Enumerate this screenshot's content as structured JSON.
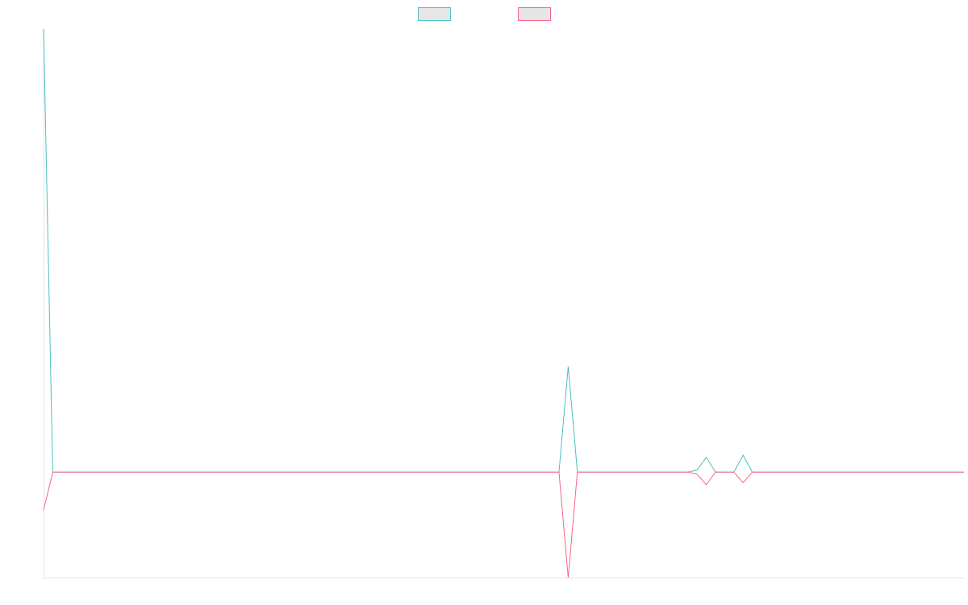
{
  "chart_data": {
    "type": "line",
    "title": "",
    "xlabel": "",
    "ylabel": "",
    "grid": false,
    "legend_position": "top-center",
    "x": [
      0,
      1,
      2,
      3,
      4,
      5,
      6,
      7,
      8,
      9,
      10,
      11,
      12,
      13,
      14,
      15,
      16,
      17,
      18,
      19,
      20,
      21,
      22,
      23,
      24,
      25,
      26,
      27,
      28,
      29,
      30,
      31,
      32,
      33,
      34,
      35,
      36,
      37,
      38,
      39,
      40,
      41,
      42,
      43,
      44,
      45,
      46,
      47,
      48,
      49,
      50,
      51,
      52,
      53,
      54,
      55,
      56,
      57,
      58,
      59,
      60,
      61,
      62,
      63,
      64,
      65,
      66,
      67,
      68,
      69,
      70,
      71,
      72,
      73,
      74,
      75,
      76,
      77,
      78,
      79,
      80,
      81,
      82,
      83,
      84,
      85,
      86,
      87,
      88,
      89,
      90,
      91,
      92,
      93,
      94,
      95,
      96,
      97,
      98,
      99,
      100
    ],
    "ylim": [
      -1,
      4.2
    ],
    "series": [
      {
        "name": "",
        "color": "#4bc0c0",
        "values": [
          4.2,
          0,
          0,
          0,
          0,
          0,
          0,
          0,
          0,
          0,
          0,
          0,
          0,
          0,
          0,
          0,
          0,
          0,
          0,
          0,
          0,
          0,
          0,
          0,
          0,
          0,
          0,
          0,
          0,
          0,
          0,
          0,
          0,
          0,
          0,
          0,
          0,
          0,
          0,
          0,
          0,
          0,
          0,
          0,
          0,
          0,
          0,
          0,
          0,
          0,
          0,
          0,
          0,
          0,
          0,
          0,
          0,
          1.0,
          0,
          0,
          0,
          0,
          0,
          0,
          0,
          0,
          0,
          0,
          0,
          0,
          0,
          0.02,
          0.14,
          0,
          0,
          0,
          0.16,
          0,
          0,
          0,
          0,
          0,
          0,
          0,
          0,
          0,
          0,
          0,
          0,
          0,
          0,
          0,
          0,
          0,
          0,
          0,
          0,
          0,
          0,
          0,
          0
        ]
      },
      {
        "name": "",
        "color": "#ff6384",
        "values": [
          -0.36,
          0,
          0,
          0,
          0,
          0,
          0,
          0,
          0,
          0,
          0,
          0,
          0,
          0,
          0,
          0,
          0,
          0,
          0,
          0,
          0,
          0,
          0,
          0,
          0,
          0,
          0,
          0,
          0,
          0,
          0,
          0,
          0,
          0,
          0,
          0,
          0,
          0,
          0,
          0,
          0,
          0,
          0,
          0,
          0,
          0,
          0,
          0,
          0,
          0,
          0,
          0,
          0,
          0,
          0,
          0,
          0,
          -1.0,
          0,
          0,
          0,
          0,
          0,
          0,
          0,
          0,
          0,
          0,
          0,
          0,
          0,
          -0.02,
          -0.12,
          0,
          0,
          0,
          -0.1,
          0,
          0,
          0,
          0,
          0,
          0,
          0,
          0,
          0,
          0,
          0,
          0,
          0,
          0,
          0,
          0,
          0,
          0,
          0,
          0,
          0,
          0,
          0,
          0
        ]
      }
    ]
  }
}
